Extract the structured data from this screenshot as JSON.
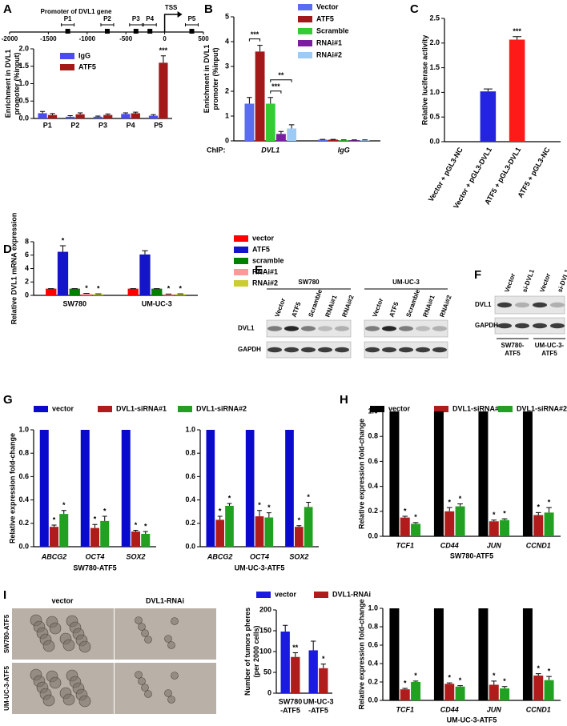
{
  "panels": [
    "A",
    "B",
    "C",
    "D",
    "E",
    "F",
    "G",
    "H",
    "I"
  ],
  "chart_data": [
    {
      "type": "promoter",
      "title": "Promoter of DVL1 gene",
      "tss": "TSS",
      "xlim": [
        -2000,
        500
      ],
      "xticks": [
        -2000,
        -1500,
        -1000,
        -500,
        0,
        500
      ],
      "sites": [
        {
          "label": "P1",
          "x": -1250
        },
        {
          "label": "P2",
          "x": -740
        },
        {
          "label": "P3",
          "x": -370
        },
        {
          "label": "P4",
          "x": -190
        },
        {
          "label": "P5",
          "x": 350
        }
      ]
    },
    {
      "type": "bar",
      "legend": [
        {
          "name": "IgG",
          "color": "#4b4bf0"
        },
        {
          "name": "ATF5",
          "color": "#a31818"
        }
      ],
      "subplots": [
        {
          "ylabel": [
            "Enrichment in DVL1",
            "promoter (%input)"
          ],
          "ylim": [
            0,
            2.0
          ],
          "yticks": [
            {
              "value": 0,
              "label": "0.0"
            },
            0.5,
            {
              "value": 1,
              "label": "1.0"
            },
            1.5,
            {
              "value": 2,
              "label": "2.0"
            }
          ],
          "categories": [
            "P1",
            "P2",
            "P3",
            "P4",
            "P5"
          ],
          "series": [
            {
              "values": [
                0.15,
                0.05,
                0.05,
                0.13,
                0.08
              ],
              "errors": [
                0.05,
                0.03,
                0.02,
                0.03,
                0.03
              ]
            },
            {
              "values": [
                0.1,
                0.12,
                0.1,
                0.15,
                1.6
              ],
              "errors": [
                0.04,
                0.04,
                0.03,
                0.03,
                0.2
              ],
              "stars": [
                null,
                null,
                null,
                null,
                "***"
              ]
            }
          ]
        }
      ]
    },
    {
      "type": "bar",
      "legend": [
        {
          "name": "Vector",
          "color": "#5a6cf0"
        },
        {
          "name": "ATF5",
          "color": "#a31818"
        },
        {
          "name": "Scramble",
          "color": "#33cc33"
        },
        {
          "name": "RNAi#1",
          "color": "#7a1fa0"
        },
        {
          "name": "RNAi#2",
          "color": "#9ecbf5"
        }
      ],
      "subplots": [
        {
          "ylabel": [
            "Enrichment in DVL1",
            "promoter (%input)"
          ],
          "ylim": [
            0,
            5
          ],
          "yticks": [
            0,
            1,
            2,
            3,
            4,
            5
          ],
          "x_prefix": "ChIP:",
          "italic_categories": true,
          "categories": [
            "DVL1",
            "IgG"
          ],
          "series": [
            {
              "values": [
                1.5,
                0.05
              ],
              "errors": [
                0.25,
                0.01
              ]
            },
            {
              "values": [
                3.6,
                0.05
              ],
              "errors": [
                0.25,
                0.01
              ]
            },
            {
              "values": [
                1.5,
                0.03
              ],
              "errors": [
                0.25,
                0.01
              ]
            },
            {
              "values": [
                0.28,
                0.03
              ],
              "errors": [
                0.1,
                0.01
              ]
            },
            {
              "values": [
                0.5,
                0.03
              ],
              "errors": [
                0.15,
                0.01
              ]
            }
          ],
          "brackets": [
            {
              "label": "***",
              "series": [
                0,
                1
              ]
            },
            {
              "label": "***",
              "series": [
                2,
                3
              ]
            },
            {
              "label": "**",
              "series": [
                2,
                4
              ]
            }
          ]
        }
      ]
    },
    {
      "type": "bar",
      "subplots": [
        {
          "ylabel": [
            "Relative luciferase activity"
          ],
          "ylim": [
            0,
            2.5
          ],
          "yticks": [
            {
              "value": 0,
              "label": "0.0"
            },
            0.5,
            {
              "value": 1,
              "label": "1.0"
            },
            1.5,
            {
              "value": 2,
              "label": "2.0"
            },
            2.5
          ],
          "categories": [
            "Vector + pGL3-NC",
            "Vector + pGL3-DVL1",
            "ATF5 + pGL3-DVL1",
            "ATF5 + pGL3-NC"
          ],
          "series": [
            {
              "values": [
                0,
                1.02,
                2.07,
                0
              ],
              "errors": [
                0,
                0.05,
                0.06,
                0
              ],
              "colors": [
                "#2424e0",
                "#2424e0",
                "#ff1a1a",
                "#ff1a1a"
              ],
              "stars": [
                null,
                null,
                "***",
                null
              ]
            }
          ]
        }
      ]
    },
    {
      "type": "bar",
      "legend": [
        {
          "name": "vector",
          "color": "#ff0000"
        },
        {
          "name": "ATF5",
          "color": "#1414c8"
        },
        {
          "name": "scramble",
          "color": "#008000"
        },
        {
          "name": "RNAi#1",
          "color": "#ff9999"
        },
        {
          "name": "RNAi#2",
          "color": "#cccc33"
        }
      ],
      "subplots": [
        {
          "ylabel": [
            "Relative DVL1 mRNA expression"
          ],
          "ylim": [
            0,
            8
          ],
          "yticks": [
            0,
            2,
            4,
            6,
            8
          ],
          "categories": [
            "SW780",
            "UM-UC-3"
          ],
          "series": [
            {
              "values": [
                1,
                1
              ],
              "errors": [
                0,
                0
              ]
            },
            {
              "values": [
                6.5,
                6.1
              ],
              "errors": [
                0.9,
                0.55
              ],
              "stars": [
                "*",
                null
              ]
            },
            {
              "values": [
                1,
                1
              ],
              "errors": [
                0,
                0
              ]
            },
            {
              "values": [
                0.25,
                0.18
              ],
              "errors": [
                0.03,
                0.02
              ],
              "stars": [
                "*",
                "*"
              ]
            },
            {
              "values": [
                0.2,
                0.2
              ],
              "errors": [
                0.03,
                0.03
              ],
              "stars": [
                "*",
                "*"
              ]
            }
          ]
        }
      ]
    },
    {
      "type": "bar",
      "legend": [
        {
          "name": "vector",
          "color": "#0a0acc"
        },
        {
          "name": "DVL1-siRNA#1",
          "color": "#b01c1c"
        },
        {
          "name": "DVL1-siRNA#2",
          "color": "#22a022"
        }
      ],
      "subplots": [
        {
          "ylabel": [
            "Relative expression fold-change"
          ],
          "ylim": [
            0,
            1.0
          ],
          "yticks": [
            {
              "value": 0,
              "label": "0.0"
            },
            0.2,
            0.4,
            0.6,
            0.8,
            {
              "value": 1,
              "label": "1.0"
            }
          ],
          "italic_categories": true,
          "categories": [
            "ABCG2",
            "OCT4",
            "SOX2"
          ],
          "caption": "SW780-ATF5",
          "series": [
            {
              "values": [
                1,
                1,
                1
              ]
            },
            {
              "values": [
                0.17,
                0.16,
                0.13
              ],
              "errors": [
                0.015,
                0.03,
                0.01
              ],
              "stars": [
                "*",
                "*",
                "*"
              ]
            },
            {
              "values": [
                0.28,
                0.22,
                0.11
              ],
              "errors": [
                0.03,
                0.04,
                0.02
              ],
              "stars": [
                "*",
                "*",
                "*"
              ]
            }
          ]
        },
        {
          "ylim": [
            0,
            1.0
          ],
          "yticks": [
            {
              "value": 0,
              "label": "0.0"
            },
            0.2,
            0.4,
            0.6,
            0.8,
            {
              "value": 1,
              "label": "1.0"
            }
          ],
          "italic_categories": true,
          "categories": [
            "ABCG2",
            "OCT4",
            "SOX2"
          ],
          "caption": "UM-UC-3-ATF5",
          "series": [
            {
              "values": [
                1,
                1,
                1
              ]
            },
            {
              "values": [
                0.23,
                0.26,
                0.17
              ],
              "errors": [
                0.03,
                0.05,
                0.01
              ],
              "stars": [
                "*",
                "*",
                "*"
              ]
            },
            {
              "values": [
                0.35,
                0.25,
                0.34
              ],
              "errors": [
                0.02,
                0.04,
                0.04
              ],
              "stars": [
                "*",
                "*",
                "*"
              ]
            }
          ]
        }
      ]
    },
    {
      "type": "bar",
      "legend": [
        {
          "name": "vector",
          "color": "#000000"
        },
        {
          "name": "DVL1-siRNA#1",
          "color": "#b01c1c"
        },
        {
          "name": "DVL1-siRNA#2",
          "color": "#22a022"
        }
      ],
      "subplots": [
        {
          "ylabel": [
            "Relative expression fold-change"
          ],
          "ylim": [
            0,
            1.0
          ],
          "yticks": [
            {
              "value": 0,
              "label": "0.0"
            },
            0.2,
            0.4,
            0.6,
            0.8,
            {
              "value": 1,
              "label": "1.0"
            }
          ],
          "italic_categories": true,
          "categories": [
            "TCF1",
            "CD44",
            "JUN",
            "CCND1"
          ],
          "caption": "SW780-ATF5",
          "series": [
            {
              "values": [
                1,
                1,
                1,
                1
              ]
            },
            {
              "values": [
                0.15,
                0.2,
                0.12,
                0.17
              ],
              "errors": [
                0.01,
                0.03,
                0.01,
                0.02
              ],
              "stars": [
                "*",
                "*",
                "*",
                "*"
              ]
            },
            {
              "values": [
                0.1,
                0.24,
                0.13,
                0.19
              ],
              "errors": [
                0.01,
                0.02,
                0.01,
                0.04
              ],
              "stars": [
                "*",
                "*",
                "*",
                "*"
              ]
            }
          ]
        },
        {
          "ylabel": [
            "Relative expression fold-change"
          ],
          "ylim": [
            0,
            1.0
          ],
          "yticks": [
            {
              "value": 0,
              "label": "0.0"
            },
            0.2,
            0.4,
            0.6,
            0.8,
            {
              "value": 1,
              "label": "1.0"
            }
          ],
          "italic_categories": true,
          "categories": [
            "TCF1",
            "CD44",
            "JUN",
            "CCND1"
          ],
          "caption": "UM-UC-3-ATF5",
          "series": [
            {
              "values": [
                1,
                1,
                1,
                1
              ]
            },
            {
              "values": [
                0.12,
                0.18,
                0.17,
                0.27
              ],
              "errors": [
                0.01,
                0.01,
                0.04,
                0.02
              ],
              "stars": [
                "*",
                "*",
                "*",
                "*"
              ]
            },
            {
              "values": [
                0.2,
                0.15,
                0.13,
                0.22
              ],
              "errors": [
                0.01,
                0.01,
                0.02,
                0.04
              ],
              "stars": [
                "*",
                "*",
                "*",
                "*"
              ]
            }
          ]
        }
      ]
    },
    {
      "type": "bar",
      "legend": [
        {
          "name": "vector",
          "color": "#1a1ae0"
        },
        {
          "name": "DVL1-RNAi",
          "color": "#b01c1c"
        }
      ],
      "subplots": [
        {
          "ylabel": [
            "Number of tumors pheres",
            "(per 2000 cells)"
          ],
          "ylim": [
            0,
            200
          ],
          "yticks": [
            0,
            50,
            100,
            150,
            200
          ],
          "categories": [
            [
              "SW780",
              "-ATF5"
            ],
            [
              "UM-UC-3",
              "-ATF5"
            ]
          ],
          "series": [
            {
              "values": [
                148,
                103
              ],
              "errors": [
                15,
                22
              ]
            },
            {
              "values": [
                87,
                60
              ],
              "errors": [
                10,
                10
              ],
              "stars": [
                "**",
                "*"
              ]
            }
          ]
        }
      ]
    }
  ],
  "blots": {
    "E": {
      "groups": [
        "SW780",
        "UM-UC-3"
      ],
      "lanes": [
        "Vector",
        "ATF5",
        "Scramble",
        "RNAi#1",
        "RNAi#2",
        "Vector",
        "ATF5",
        "Scramble",
        "RNAi#1",
        "RNAi#2"
      ],
      "rows": [
        "DVL1",
        "GAPDH"
      ]
    },
    "F": {
      "groups": [
        [
          "SW780-",
          "ATF5"
        ],
        [
          "UM-UC-3-",
          "ATF5"
        ]
      ],
      "lanes": [
        "Vector",
        "si-DVL1",
        "Vector",
        "si-DVL1"
      ],
      "rows": [
        "DVL1",
        "GAPDH"
      ]
    }
  },
  "images": {
    "columns": [
      "vector",
      "DVL1-RNAi"
    ],
    "rows": [
      "SW780-ATF5",
      "UM-UC-3-ATF5"
    ]
  }
}
